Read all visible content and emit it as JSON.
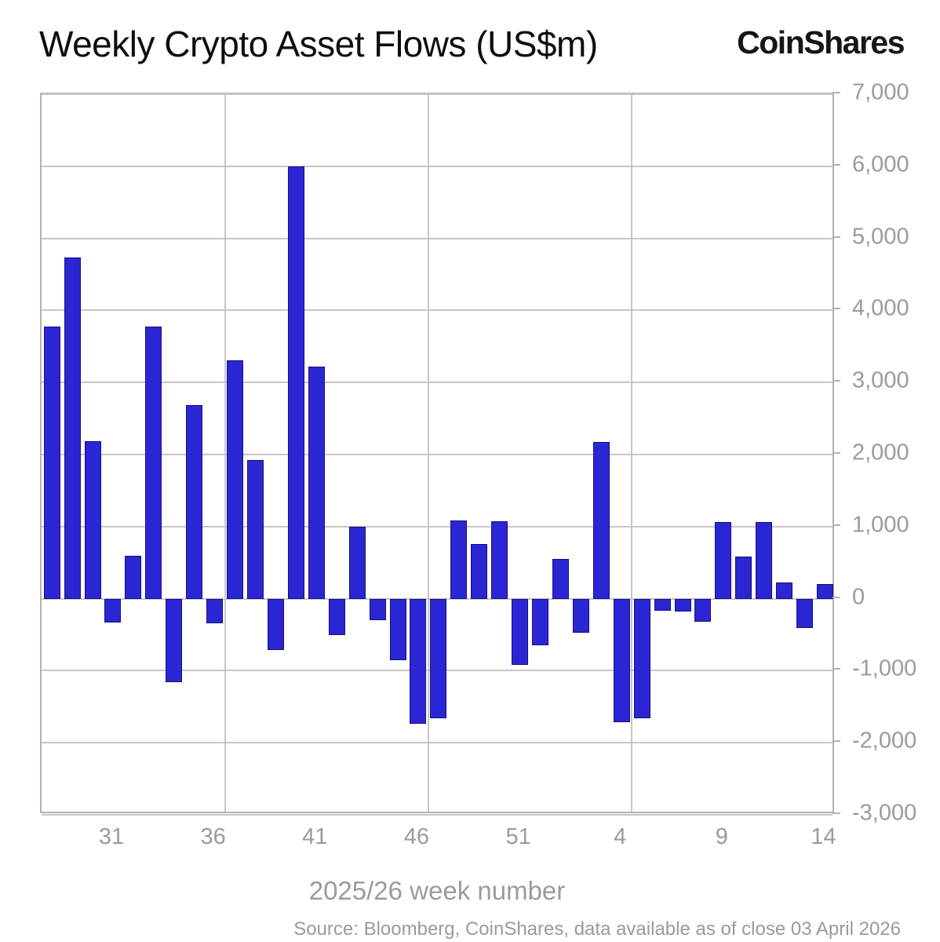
{
  "header": {
    "title": "Weekly Crypto Asset Flows (US$m)",
    "logo": "CoinShares"
  },
  "chart_data": {
    "type": "bar",
    "title": "Weekly Crypto Asset Flows (US$m)",
    "xlabel": "2025/26 week number",
    "ylabel": "",
    "ylim": [
      -3000,
      7000
    ],
    "grid": true,
    "legend": "none",
    "categories": [
      "28",
      "29",
      "30",
      "31",
      "32",
      "33",
      "34",
      "35",
      "36",
      "37",
      "38",
      "39",
      "40",
      "41",
      "42",
      "43",
      "44",
      "45",
      "46",
      "47",
      "48",
      "49",
      "50",
      "51",
      "52",
      "1",
      "2",
      "3",
      "4",
      "5",
      "6",
      "7",
      "8",
      "9",
      "10",
      "11",
      "12",
      "13",
      "14"
    ],
    "values": [
      3780,
      4730,
      2180,
      -330,
      590,
      3780,
      -1160,
      2690,
      -340,
      3310,
      1920,
      -710,
      6000,
      3220,
      -510,
      1000,
      -300,
      -850,
      -1740,
      -1660,
      1090,
      760,
      1070,
      -920,
      -650,
      550,
      -470,
      2170,
      -1710,
      -1660,
      -170,
      -180,
      -320,
      1060,
      580,
      1060,
      220,
      -410,
      200
    ],
    "y_tick_values": [
      7000,
      6000,
      5000,
      4000,
      3000,
      2000,
      1000,
      0,
      -1000,
      -2000,
      -3000
    ],
    "y_tick_labels": [
      "7,000",
      "6,000",
      "5,000",
      "4,000",
      "3,000",
      "2,000",
      "1,000",
      "0",
      "-1,000",
      "-2,000",
      "-3,000"
    ],
    "x_ticks": [
      {
        "index": 3,
        "label": "31"
      },
      {
        "index": 8,
        "label": "36"
      },
      {
        "index": 13,
        "label": "41"
      },
      {
        "index": 18,
        "label": "46"
      },
      {
        "index": 23,
        "label": "51"
      },
      {
        "index": 28,
        "label": "4"
      },
      {
        "index": 33,
        "label": "9"
      },
      {
        "index": 38,
        "label": "14"
      }
    ],
    "x_gridlines_after_index": [
      8,
      18,
      28
    ],
    "bar_color": "#2b26d4",
    "bar_border_color": "#17107e",
    "gridline_color": "#c7c7c7",
    "axis_text_color": "#9b9b9b"
  },
  "footer": {
    "source": "Source: Bloomberg, CoinShares, data available as of close 03 April 2026"
  }
}
